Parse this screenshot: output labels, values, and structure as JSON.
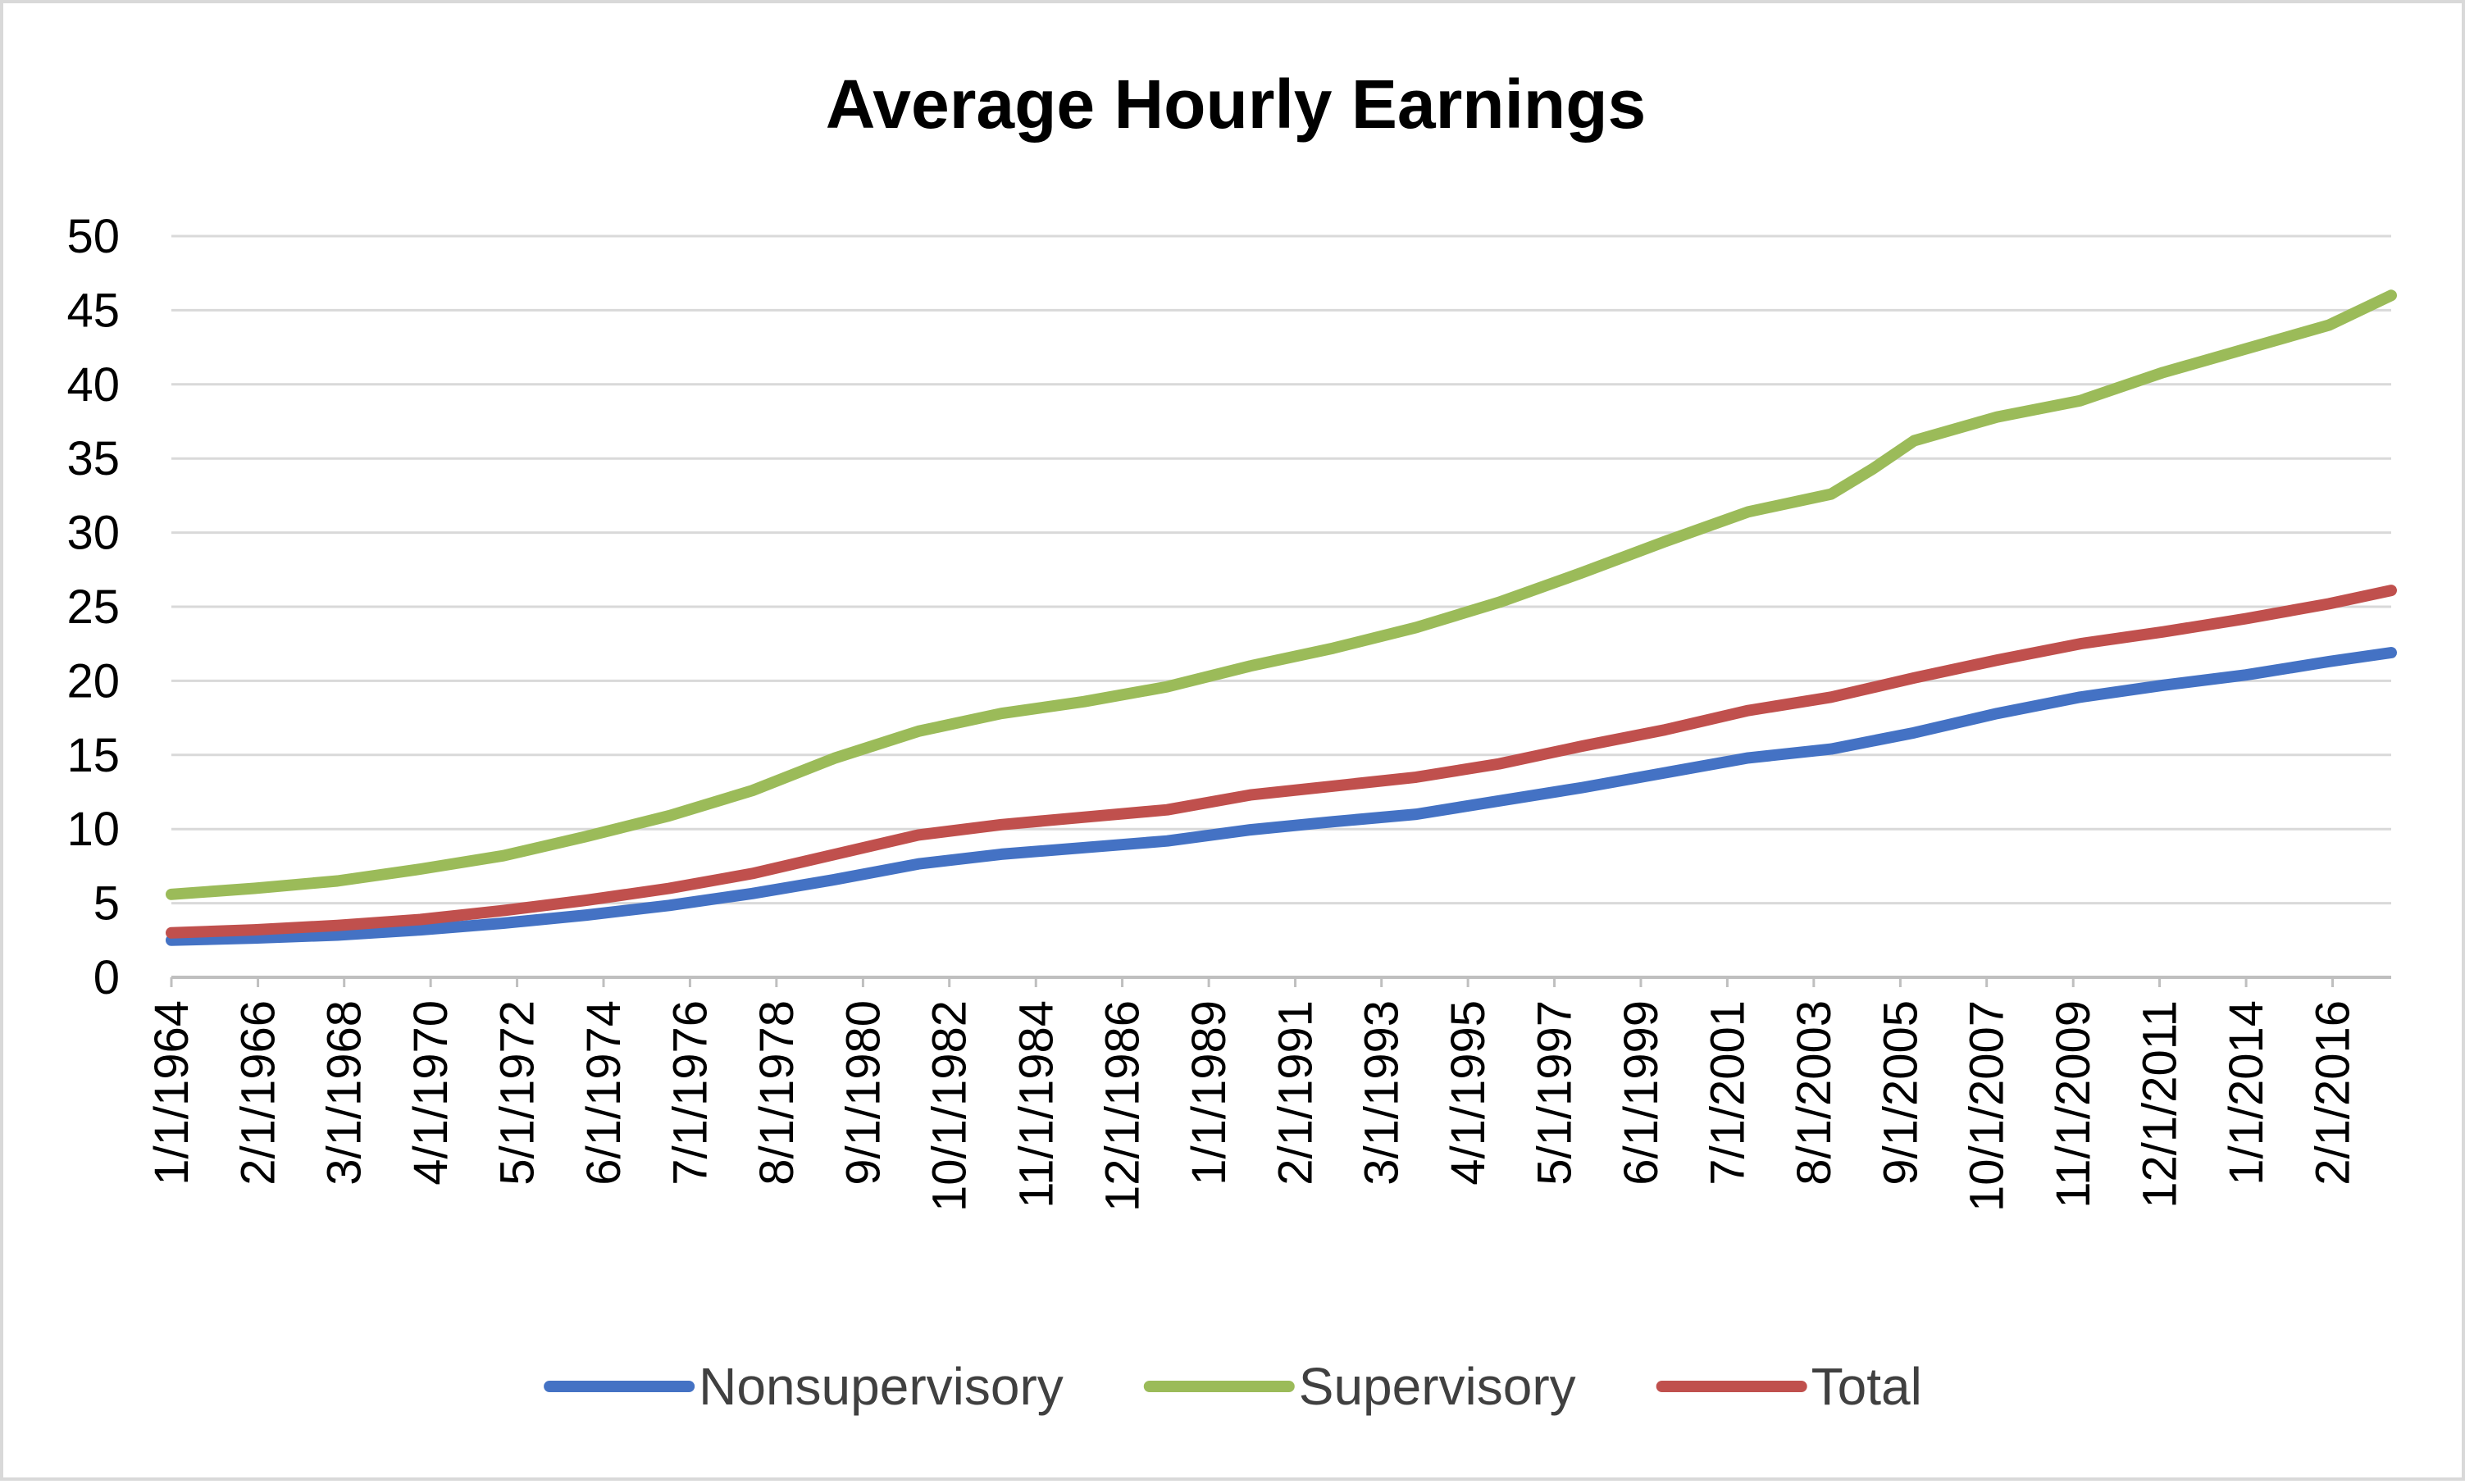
{
  "chart_data": {
    "type": "line",
    "title": "Average Hourly Earnings",
    "xlabel": "",
    "ylabel": "",
    "ylim": [
      0,
      50
    ],
    "yticks": [
      0,
      5,
      10,
      15,
      20,
      25,
      30,
      35,
      40,
      45,
      50
    ],
    "grid": true,
    "legend": "bottom",
    "x_tick_labels": [
      "1/1/1964",
      "2/1/1966",
      "3/1/1968",
      "4/1/1970",
      "5/1/1972",
      "6/1/1974",
      "7/1/1976",
      "8/1/1978",
      "9/1/1980",
      "10/1/1982",
      "11/1/1984",
      "12/1/1986",
      "1/1/1989",
      "2/1/1991",
      "3/1/1993",
      "4/1/1995",
      "5/1/1997",
      "6/1/1999",
      "7/1/2001",
      "8/1/2003",
      "9/1/2005",
      "10/1/2007",
      "11/1/2009",
      "12/1/2011",
      "1/1/2014",
      "2/1/2016"
    ],
    "x_range": [
      "1/1/1964",
      "7/1/2017"
    ],
    "series": [
      {
        "name": "Nonsupervisory",
        "color": "#4472c4",
        "points": [
          [
            "1/1/1964",
            2.5
          ],
          [
            "1/1/1966",
            2.65
          ],
          [
            "1/1/1968",
            2.85
          ],
          [
            "1/1/1970",
            3.2
          ],
          [
            "1/1/1972",
            3.65
          ],
          [
            "1/1/1974",
            4.2
          ],
          [
            "1/1/1976",
            4.85
          ],
          [
            "1/1/1978",
            5.65
          ],
          [
            "1/1/1980",
            6.6
          ],
          [
            "1/1/1982",
            7.65
          ],
          [
            "1/1/1984",
            8.3
          ],
          [
            "1/1/1986",
            8.75
          ],
          [
            "1/1/1988",
            9.2
          ],
          [
            "1/1/1990",
            9.95
          ],
          [
            "1/1/1992",
            10.5
          ],
          [
            "1/1/1994",
            11.0
          ],
          [
            "1/1/1996",
            11.9
          ],
          [
            "1/1/1998",
            12.8
          ],
          [
            "1/1/2000",
            13.8
          ],
          [
            "1/1/2002",
            14.8
          ],
          [
            "1/1/2004",
            15.4
          ],
          [
            "1/1/2006",
            16.5
          ],
          [
            "1/1/2008",
            17.8
          ],
          [
            "1/1/2010",
            18.9
          ],
          [
            "1/1/2012",
            19.7
          ],
          [
            "1/1/2014",
            20.4
          ],
          [
            "1/1/2016",
            21.3
          ],
          [
            "7/1/2017",
            21.9
          ]
        ]
      },
      {
        "name": "Supervisory",
        "color": "#9bbb59",
        "points": [
          [
            "1/1/1964",
            5.6
          ],
          [
            "1/1/1966",
            6.0
          ],
          [
            "1/1/1968",
            6.5
          ],
          [
            "1/1/1970",
            7.3
          ],
          [
            "1/1/1972",
            8.2
          ],
          [
            "1/1/1974",
            9.5
          ],
          [
            "1/1/1976",
            10.9
          ],
          [
            "1/1/1978",
            12.6
          ],
          [
            "1/1/1980",
            14.8
          ],
          [
            "1/1/1982",
            16.6
          ],
          [
            "1/1/1984",
            17.8
          ],
          [
            "1/1/1986",
            18.6
          ],
          [
            "1/1/1988",
            19.6
          ],
          [
            "1/1/1990",
            21.0
          ],
          [
            "1/1/1992",
            22.2
          ],
          [
            "1/1/1994",
            23.6
          ],
          [
            "1/1/1996",
            25.3
          ],
          [
            "1/1/1998",
            27.3
          ],
          [
            "1/1/2000",
            29.4
          ],
          [
            "1/1/2002",
            31.4
          ],
          [
            "1/1/2004",
            32.6
          ],
          [
            "1/1/2005",
            34.3
          ],
          [
            "1/1/2006",
            36.2
          ],
          [
            "1/1/2008",
            37.8
          ],
          [
            "1/1/2010",
            38.9
          ],
          [
            "1/1/2012",
            40.8
          ],
          [
            "1/1/2014",
            42.4
          ],
          [
            "1/1/2016",
            44.0
          ],
          [
            "7/1/2017",
            46.0
          ]
        ]
      },
      {
        "name": "Total",
        "color": "#c0504d",
        "points": [
          [
            "1/1/1964",
            3.0
          ],
          [
            "1/1/1966",
            3.2
          ],
          [
            "1/1/1968",
            3.5
          ],
          [
            "1/1/1970",
            3.9
          ],
          [
            "1/1/1972",
            4.5
          ],
          [
            "1/1/1974",
            5.2
          ],
          [
            "1/1/1976",
            6.0
          ],
          [
            "1/1/1978",
            7.0
          ],
          [
            "1/1/1980",
            8.3
          ],
          [
            "1/1/1982",
            9.6
          ],
          [
            "1/1/1984",
            10.3
          ],
          [
            "1/1/1986",
            10.8
          ],
          [
            "1/1/1988",
            11.3
          ],
          [
            "1/1/1990",
            12.3
          ],
          [
            "1/1/1992",
            12.9
          ],
          [
            "1/1/1994",
            13.5
          ],
          [
            "1/1/1996",
            14.4
          ],
          [
            "1/1/1998",
            15.6
          ],
          [
            "1/1/2000",
            16.7
          ],
          [
            "1/1/2002",
            18.0
          ],
          [
            "1/1/2004",
            18.9
          ],
          [
            "1/1/2006",
            20.2
          ],
          [
            "1/1/2008",
            21.4
          ],
          [
            "1/1/2010",
            22.5
          ],
          [
            "1/1/2012",
            23.3
          ],
          [
            "1/1/2014",
            24.2
          ],
          [
            "1/1/2016",
            25.2
          ],
          [
            "7/1/2017",
            26.1
          ]
        ]
      }
    ]
  }
}
